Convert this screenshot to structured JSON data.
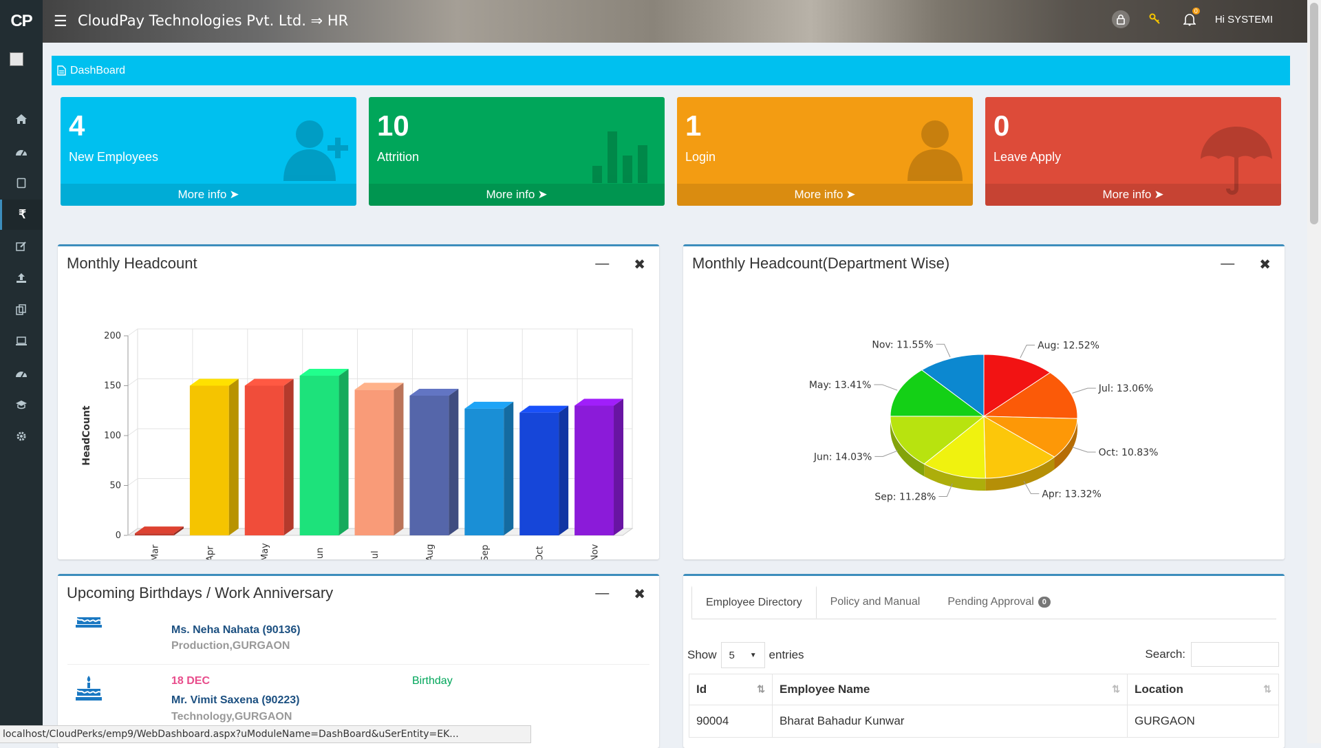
{
  "header": {
    "logo": "CP",
    "title": "CloudPay Technologies Pvt. Ltd. ⇒ HR",
    "greeting": "Hi SYSTEMI",
    "notif_count": "0"
  },
  "breadcrumb": {
    "label": "DashBoard"
  },
  "stats": [
    {
      "value": "4",
      "label": "New Employees",
      "link": "More info",
      "color": "#00c0ef",
      "icon": "user-plus-icon"
    },
    {
      "value": "10",
      "label": "Attrition",
      "link": "More info",
      "color": "#00a65a",
      "icon": "bar-chart-icon"
    },
    {
      "value": "1",
      "label": "Login",
      "link": "More info",
      "color": "#f39c12",
      "icon": "user-icon"
    },
    {
      "value": "0",
      "label": "Leave Apply",
      "link": "More info",
      "color": "#dd4b39",
      "icon": "umbrella-icon"
    }
  ],
  "sidebar": {
    "icons": [
      "home-icon",
      "dashboard-icon",
      "book-icon",
      "rupee-icon",
      "edit-icon",
      "upload-icon",
      "copy-icon",
      "laptop-icon",
      "dashboard-icon",
      "graduation-icon",
      "settings-icon"
    ]
  },
  "headcount_panel": {
    "title": "Monthly Headcount",
    "chart_data": {
      "type": "bar",
      "categories": [
        "Mar",
        "Apr",
        "May",
        "Jun",
        "Jul",
        "Aug",
        "Sep",
        "Oct",
        "Nov"
      ],
      "values": [
        2,
        150,
        150,
        160,
        146,
        140,
        127,
        123,
        130
      ],
      "colors": [
        "#c0392b",
        "#f5c400",
        "#f04d3a",
        "#1de27b",
        "#f99b78",
        "#5566aa",
        "#1a8fd6",
        "#1646d9",
        "#8b1bd9"
      ],
      "ylabel": "HeadCount",
      "ylim": [
        0,
        200
      ],
      "yticks": [
        0,
        50,
        100,
        150,
        200
      ]
    }
  },
  "dept_panel": {
    "title": "Monthly Headcount(Department Wise)",
    "chart_data": {
      "type": "pie",
      "slices": [
        {
          "label": "Aug",
          "text": "Aug: 12.52%",
          "value": 12.52,
          "color": "#f21313"
        },
        {
          "label": "Jul",
          "text": "Jul: 13.06%",
          "value": 13.06,
          "color": "#fb5a08"
        },
        {
          "label": "Oct",
          "text": "Oct: 10.83%",
          "value": 10.83,
          "color": "#fd9807"
        },
        {
          "label": "Apr",
          "text": "Apr: 13.32%",
          "value": 13.32,
          "color": "#fcc70a"
        },
        {
          "label": "Sep",
          "text": "Sep: 11.28%",
          "value": 11.28,
          "color": "#f0f20f"
        },
        {
          "label": "Jun",
          "text": "Jun: 14.03%",
          "value": 14.03,
          "color": "#b8e30f"
        },
        {
          "label": "May",
          "text": "May: 13.41%",
          "value": 13.41,
          "color": "#14d016"
        },
        {
          "label": "Nov",
          "text": "Nov: 11.55%",
          "value": 11.55,
          "color": "#0c88d0"
        }
      ]
    }
  },
  "birthday_panel": {
    "title": "Upcoming Birthdays / Work Anniversary",
    "items": [
      {
        "name": "Ms. Neha Nahata (90136)",
        "dept": "Production,GURGAON"
      },
      {
        "date": "18 DEC",
        "type": "Birthday",
        "name": "Mr. Vimit Saxena (90223)",
        "dept": "Technology,GURGAON"
      }
    ]
  },
  "directory_panel": {
    "tabs": [
      "Employee Directory",
      "Policy and Manual",
      "Pending Approval"
    ],
    "pending_count": "0",
    "show_label": "Show",
    "entries_value": "5",
    "entries_label": "entries",
    "search_label": "Search:",
    "columns": [
      "Id",
      "Employee Name",
      "Location"
    ],
    "rows": [
      [
        "90004",
        "Bharat Bahadur Kunwar",
        "GURGAON"
      ]
    ]
  },
  "statusbar": {
    "url": "localhost/CloudPerks/emp9/WebDashboard.aspx?uModuleName=DashBoard&uSerEntity=EK..."
  }
}
